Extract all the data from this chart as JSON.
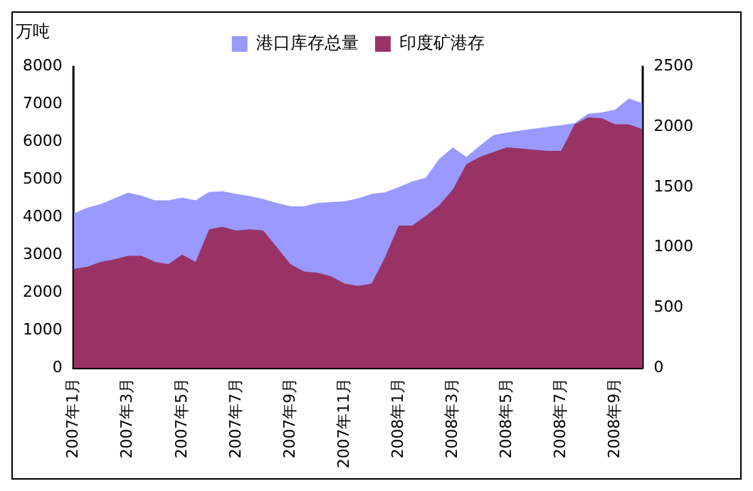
{
  "chart_data": {
    "type": "area",
    "ylabel": "万吨",
    "categories": [
      "2007年1月",
      null,
      null,
      null,
      "2007年3月",
      null,
      null,
      null,
      "2007年5月",
      null,
      null,
      null,
      "2007年7月",
      null,
      null,
      null,
      "2007年9月",
      null,
      null,
      null,
      "2007年11月",
      null,
      null,
      null,
      "2008年1月",
      null,
      null,
      null,
      "2008年3月",
      null,
      null,
      null,
      "2008年5月",
      null,
      null,
      null,
      "2008年7月",
      null,
      null,
      null,
      "2008年9月",
      null,
      null
    ],
    "series": [
      {
        "name": "港口库存总量",
        "color": "#9999ff",
        "values": [
          4100,
          4250,
          4350,
          4500,
          4650,
          4570,
          4450,
          4450,
          4520,
          4450,
          4670,
          4690,
          4620,
          4560,
          4480,
          4380,
          4290,
          4290,
          4380,
          4400,
          4420,
          4500,
          4620,
          4660,
          4800,
          4950,
          5050,
          5550,
          5850,
          5600,
          5900,
          6180,
          6250,
          6300,
          6350,
          6400,
          6440,
          6500,
          6750,
          6780,
          6860,
          7150,
          7030
        ]
      },
      {
        "name": "印度矿港存",
        "color": "#993366",
        "axis": "y2",
        "values": [
          820,
          840,
          880,
          900,
          930,
          930,
          880,
          860,
          940,
          880,
          1150,
          1170,
          1140,
          1150,
          1140,
          1000,
          860,
          800,
          790,
          760,
          700,
          680,
          700,
          920,
          1180,
          1180,
          1260,
          1350,
          1480,
          1690,
          1750,
          1790,
          1830,
          1820,
          1810,
          1800,
          1800,
          2020,
          2080,
          2070,
          2020,
          2020,
          1980
        ]
      }
    ],
    "ylim": [
      0,
      8000
    ],
    "yticks": [
      0,
      1000,
      2000,
      3000,
      4000,
      5000,
      6000,
      7000,
      8000
    ],
    "y2lim": [
      0,
      2500
    ],
    "y2ticks": [
      0,
      500,
      1000,
      1500,
      2000,
      2500
    ],
    "grid": false,
    "legend": "top"
  }
}
